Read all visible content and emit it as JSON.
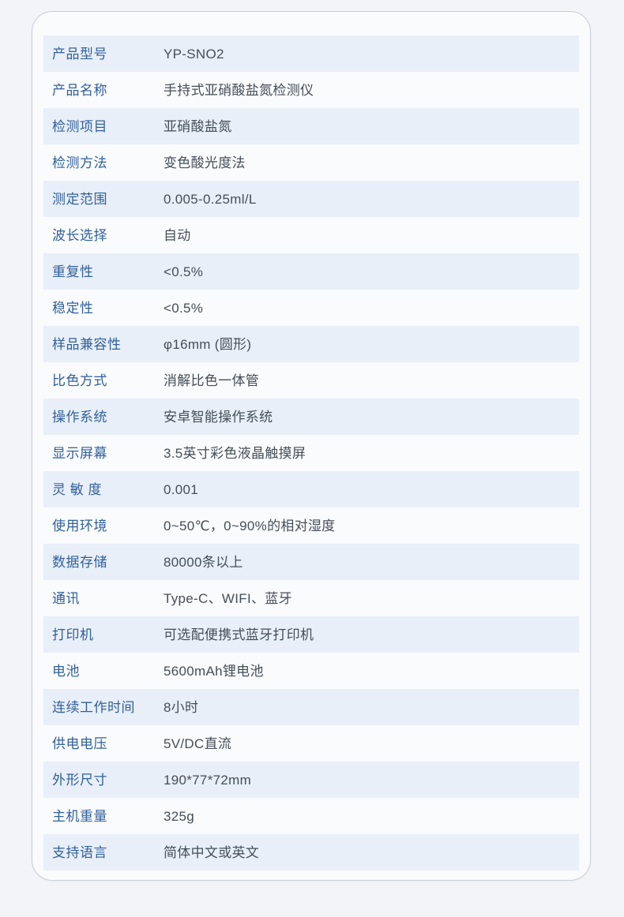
{
  "colors": {
    "page_background": "#f2f4f7",
    "card_background": "#fafbfd",
    "card_border": "#c9ced6",
    "row_stripe": "#e9eff8",
    "label_text": "#30609c",
    "value_text": "#454e58"
  },
  "spec_table": {
    "rows": [
      {
        "label": "产品型号",
        "value": "YP-SNO2"
      },
      {
        "label": "产品名称",
        "value": "手持式亚硝酸盐氮检测仪"
      },
      {
        "label": "检测项目",
        "value": "亚硝酸盐氮"
      },
      {
        "label": "检测方法",
        "value": "变色酸光度法"
      },
      {
        "label": "测定范围",
        "value": "0.005-0.25ml/L"
      },
      {
        "label": "波长选择",
        "value": "自动"
      },
      {
        "label": "重复性",
        "value": "<0.5%"
      },
      {
        "label": "稳定性",
        "value": "<0.5%"
      },
      {
        "label": "样品兼容性",
        "value": "φ16mm (圆形)"
      },
      {
        "label": "比色方式",
        "value": "消解比色一体管"
      },
      {
        "label": "操作系统",
        "value": "安卓智能操作系统"
      },
      {
        "label": "显示屏幕",
        "value": "3.5英寸彩色液晶触摸屏"
      },
      {
        "label": "灵 敏 度",
        "value": "0.001"
      },
      {
        "label": "使用环境",
        "value": "0~50℃，0~90%的相对湿度"
      },
      {
        "label": "数据存储",
        "value": "80000条以上"
      },
      {
        "label": "通讯",
        "value": "Type-C、WIFI、蓝牙"
      },
      {
        "label": "打印机",
        "value": "可选配便携式蓝牙打印机"
      },
      {
        "label": "电池",
        "value": "5600mAh锂电池"
      },
      {
        "label": "连续工作时间",
        "value": "8小时"
      },
      {
        "label": "供电电压",
        "value": "5V/DC直流"
      },
      {
        "label": "外形尺寸",
        "value": "190*77*72mm"
      },
      {
        "label": "主机重量",
        "value": "325g"
      },
      {
        "label": "支持语言",
        "value": "简体中文或英文"
      }
    ]
  }
}
